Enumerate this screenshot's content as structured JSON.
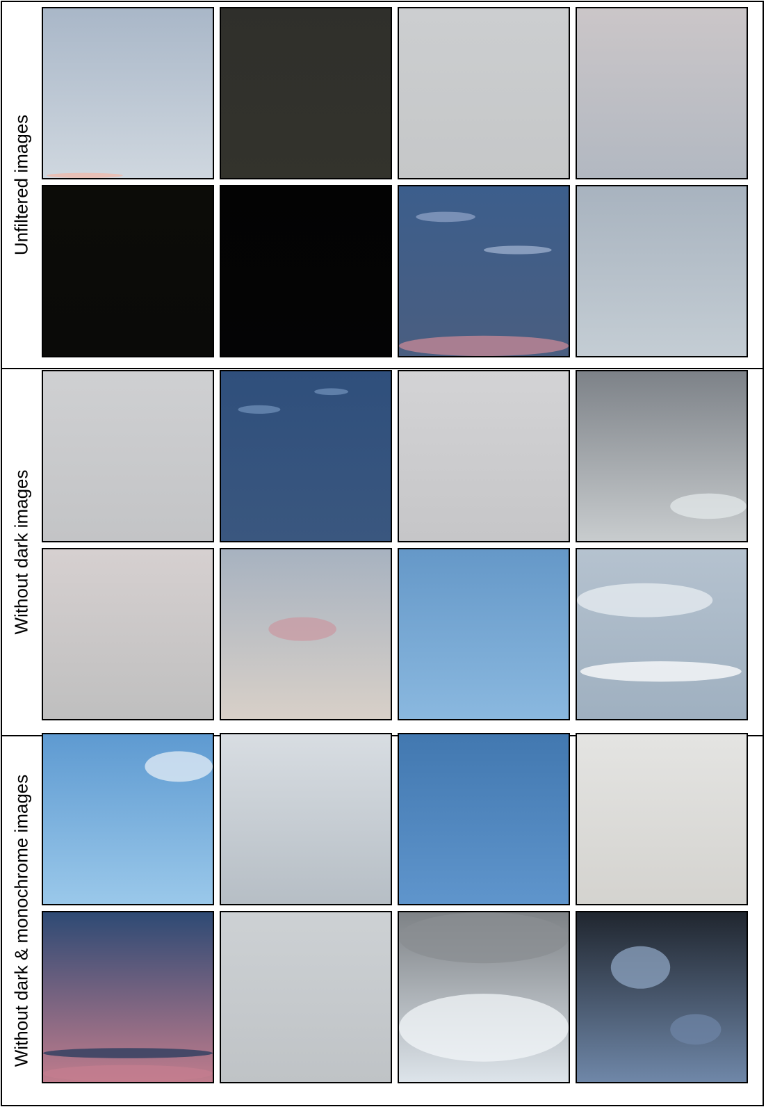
{
  "sections": [
    {
      "label": "Unfiltered images"
    },
    {
      "label": "Without dark images"
    },
    {
      "label": "Without dark & monochrome images"
    }
  ],
  "tiles": [
    {
      "desc": "pale blue dusk sky with pink horizon",
      "colors": [
        "#a9b7c8",
        "#cfd7df"
      ]
    },
    {
      "desc": "dark olive night sky",
      "colors": [
        "#2f2f2b",
        "#33332c"
      ]
    },
    {
      "desc": "light grey overcast",
      "colors": [
        "#ccced0",
        "#c5c7c8"
      ]
    },
    {
      "desc": "grey-pink overcast",
      "colors": [
        "#cbc6c8",
        "#b2b8c1"
      ]
    },
    {
      "desc": "black night sky",
      "colors": [
        "#0c0c08",
        "#0a0a08"
      ]
    },
    {
      "desc": "black night sky",
      "colors": [
        "#030303",
        "#040405"
      ]
    },
    {
      "desc": "deep blue dusk with clouds and pink horizon",
      "colors": [
        "#3c5e8c",
        "#4a5e80"
      ]
    },
    {
      "desc": "grey layered clouds",
      "colors": [
        "#a8b3bf",
        "#c4cdd4"
      ]
    },
    {
      "desc": "light grey overcast",
      "colors": [
        "#cfd0d2",
        "#c3c4c6"
      ]
    },
    {
      "desc": "deep blue sky with wispy clouds",
      "colors": [
        "#2f4f7c",
        "#3a577f"
      ]
    },
    {
      "desc": "light grey overcast",
      "colors": [
        "#d3d3d5",
        "#c6c6c8"
      ]
    },
    {
      "desc": "dark grey clouds with bright break",
      "colors": [
        "#7d8288",
        "#c8ccce"
      ]
    },
    {
      "desc": "pinkish grey overcast",
      "colors": [
        "#d6d0d0",
        "#bfbfbf"
      ]
    },
    {
      "desc": "grey-blue sky with pink cloud",
      "colors": [
        "#a7b2c0",
        "#d8d0c8"
      ]
    },
    {
      "desc": "clear blue sky",
      "colors": [
        "#6598c8",
        "#8ab8df"
      ]
    },
    {
      "desc": "blue-grey sky with white cumulus",
      "colors": [
        "#b5c2cf",
        "#9fb0c0"
      ]
    },
    {
      "desc": "clear blue sky with small clouds",
      "colors": [
        "#5e9ad1",
        "#9ac8ea"
      ]
    },
    {
      "desc": "light grey streaky clouds",
      "colors": [
        "#d8dde2",
        "#b6bec5"
      ]
    },
    {
      "desc": "clear deep blue sky",
      "colors": [
        "#4278b0",
        "#5f95cc"
      ]
    },
    {
      "desc": "pale off-white overcast",
      "colors": [
        "#e4e4e2",
        "#d4d3cf"
      ]
    },
    {
      "desc": "deep blue dusk with pink horizon",
      "colors": [
        "#2e4a74",
        "#c07c8c"
      ]
    },
    {
      "desc": "grey overcast",
      "colors": [
        "#cdd1d4",
        "#bfc3c6"
      ]
    },
    {
      "desc": "grey clouds with bright gap",
      "colors": [
        "#7e8286",
        "#dde4ea"
      ]
    },
    {
      "desc": "dark storm clouds with blue gaps",
      "colors": [
        "#20262f",
        "#6f87a8"
      ]
    }
  ]
}
